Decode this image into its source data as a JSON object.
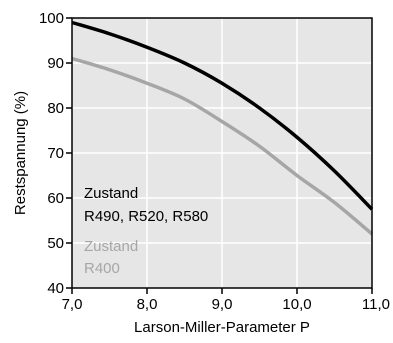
{
  "chart_data": {
    "type": "line",
    "xlabel": "Larson-Miller-Parameter P",
    "ylabel": "Restspannung (%)",
    "xlim": [
      7.0,
      11.0
    ],
    "ylim": [
      40,
      100
    ],
    "x_ticks": [
      7.0,
      8.0,
      9.0,
      10.0,
      11.0
    ],
    "x_tick_labels": [
      "7,0",
      "8,0",
      "9,0",
      "10,0",
      "11,0"
    ],
    "y_ticks": [
      40,
      50,
      60,
      70,
      80,
      90,
      100
    ],
    "y_tick_labels": [
      "40",
      "50",
      "60",
      "70",
      "80",
      "90",
      "100"
    ],
    "grid": true,
    "background_color": "#e6e6e6",
    "grid_color": "#ffffff",
    "x": [
      7.0,
      7.5,
      8.0,
      8.5,
      9.0,
      9.5,
      10.0,
      10.5,
      11.0
    ],
    "series": [
      {
        "name": "Zustand R490, R520, R580",
        "color": "#000000",
        "values": [
          99,
          96.5,
          93.5,
          90,
          85.5,
          80,
          73.5,
          66,
          57.5
        ]
      },
      {
        "name": "Zustand R400",
        "color": "#a6a6a6",
        "values": [
          91,
          88.5,
          85.5,
          82,
          77,
          71.5,
          65,
          59,
          52
        ]
      }
    ],
    "annotations": [
      {
        "lines": [
          "Zustand",
          "R490, R520, R580"
        ],
        "color": "#000000"
      },
      {
        "lines": [
          "Zustand",
          "R400"
        ],
        "color": "#a6a6a6"
      }
    ]
  }
}
